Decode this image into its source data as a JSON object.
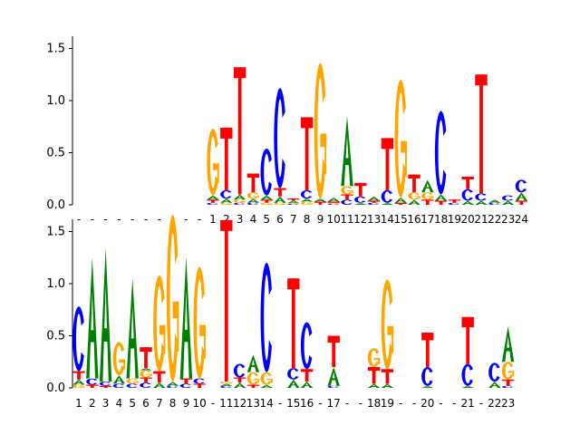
{
  "colors": {
    "A": "#008000",
    "C": "#0000ff",
    "G": "#ffa500",
    "T": "#ff0000",
    "axis": "#000000",
    "background": "#ffffff"
  },
  "chart_data": [
    {
      "type": "sequence-logo",
      "ylim": [
        0,
        1.6
      ],
      "yticks": [
        0.0,
        0.5,
        1.0,
        1.5
      ],
      "ytick_labels": [
        "0.0",
        "0.5",
        "1.0",
        "1.5"
      ],
      "xtick_labels": [
        "-",
        "-",
        "-",
        "-",
        "-",
        "-",
        "-",
        "-",
        "-",
        "-",
        "1",
        "2",
        "3",
        "4",
        "5",
        "6",
        "7",
        "8",
        "9",
        "10",
        "11",
        "12",
        "13",
        "14",
        "15",
        "16",
        "17",
        "18",
        "19",
        "20",
        "21",
        "22",
        "23",
        "24"
      ],
      "positions": [
        [],
        [],
        [],
        [],
        [],
        [],
        [],
        [],
        [],
        [],
        [
          [
            "C",
            0.02
          ],
          [
            "T",
            0.03
          ],
          [
            "A",
            0.04
          ],
          [
            "G",
            0.64
          ]
        ],
        [
          [
            "G",
            0.02
          ],
          [
            "A",
            0.04
          ],
          [
            "C",
            0.08
          ],
          [
            "T",
            0.6
          ]
        ],
        [
          [
            "C",
            0.02
          ],
          [
            "G",
            0.03
          ],
          [
            "A",
            0.05
          ],
          [
            "T",
            1.22
          ]
        ],
        [
          [
            "C",
            0.02
          ],
          [
            "A",
            0.04
          ],
          [
            "G",
            0.06
          ],
          [
            "T",
            0.18
          ]
        ],
        [
          [
            "G",
            0.02
          ],
          [
            "T",
            0.03
          ],
          [
            "A",
            0.04
          ],
          [
            "C",
            0.45
          ]
        ],
        [
          [
            "G",
            0.02
          ],
          [
            "A",
            0.06
          ],
          [
            "T",
            0.08
          ],
          [
            "C",
            0.96
          ]
        ],
        [
          [
            "C",
            0.01
          ],
          [
            "G",
            0.01
          ],
          [
            "A",
            0.02
          ],
          [
            "T",
            0.02
          ]
        ],
        [
          [
            "G",
            0.03
          ],
          [
            "A",
            0.03
          ],
          [
            "C",
            0.08
          ],
          [
            "T",
            0.7
          ]
        ],
        [
          [
            "T",
            0.03
          ],
          [
            "A",
            0.03
          ],
          [
            "G",
            1.3
          ]
        ],
        [
          [
            "C",
            0.01
          ],
          [
            "G",
            0.01
          ],
          [
            "T",
            0.01
          ],
          [
            "A",
            0.04
          ]
        ],
        [
          [
            "C",
            0.05
          ],
          [
            "T",
            0.05
          ],
          [
            "G",
            0.08
          ],
          [
            "A",
            0.67
          ]
        ],
        [
          [
            "A",
            0.02
          ],
          [
            "C",
            0.06
          ],
          [
            "T",
            0.13
          ]
        ],
        [
          [
            "C",
            0.02
          ],
          [
            "T",
            0.02
          ],
          [
            "A",
            0.04
          ]
        ],
        [
          [
            "A",
            0.02
          ],
          [
            "C",
            0.12
          ],
          [
            "T",
            0.5
          ]
        ],
        [
          [
            "T",
            0.02
          ],
          [
            "A",
            0.05
          ],
          [
            "G",
            1.13
          ]
        ],
        [
          [
            "A",
            0.05
          ],
          [
            "G",
            0.07
          ],
          [
            "T",
            0.17
          ]
        ],
        [
          [
            "T",
            0.05
          ],
          [
            "G",
            0.07
          ],
          [
            "A",
            0.12
          ]
        ],
        [
          [
            "T",
            0.04
          ],
          [
            "A",
            0.06
          ],
          [
            "C",
            0.8
          ]
        ],
        [
          [
            "C",
            0.02
          ],
          [
            "T",
            0.03
          ]
        ],
        [
          [
            "A",
            0.04
          ],
          [
            "C",
            0.11
          ],
          [
            "T",
            0.12
          ]
        ],
        [
          [
            "A",
            0.04
          ],
          [
            "C",
            0.07
          ],
          [
            "T",
            1.14
          ]
        ],
        [
          [
            "C",
            0.02
          ],
          [
            "A",
            0.03
          ]
        ],
        [
          [
            "A",
            0.04
          ],
          [
            "C",
            0.05
          ]
        ],
        [
          [
            "T",
            0.04
          ],
          [
            "A",
            0.08
          ],
          [
            "C",
            0.12
          ]
        ]
      ]
    },
    {
      "type": "sequence-logo",
      "ylim": [
        0,
        1.6
      ],
      "yticks": [
        0.0,
        0.5,
        1.0,
        1.5
      ],
      "ytick_labels": [
        "0.0",
        "0.5",
        "1.0",
        "1.5"
      ],
      "xtick_labels": [
        "1",
        "2",
        "3",
        "4",
        "5",
        "6",
        "7",
        "8",
        "9",
        "10",
        "-",
        "11",
        "12",
        "13",
        "14",
        "-",
        "15",
        "16",
        "-",
        "17",
        "-",
        "-",
        "18",
        "19",
        "-",
        "-",
        "20",
        "-",
        "-",
        "21",
        "-",
        "22",
        "23"
      ],
      "positions": [
        [
          [
            "G",
            0.03
          ],
          [
            "A",
            0.05
          ],
          [
            "T",
            0.08
          ],
          [
            "C",
            0.62
          ]
        ],
        [
          [
            "T",
            0.03
          ],
          [
            "C",
            0.06
          ],
          [
            "A",
            1.16
          ]
        ],
        [
          [
            "T",
            0.02
          ],
          [
            "C",
            0.04
          ],
          [
            "A",
            1.28
          ]
        ],
        [
          [
            "C",
            0.04
          ],
          [
            "A",
            0.08
          ],
          [
            "G",
            0.32
          ]
        ],
        [
          [
            "C",
            0.04
          ],
          [
            "G",
            0.05
          ],
          [
            "A",
            0.96
          ]
        ],
        [
          [
            "C",
            0.05
          ],
          [
            "T",
            0.05
          ],
          [
            "G",
            0.07
          ],
          [
            "A",
            0.02
          ],
          [
            "T",
            0.2
          ]
        ],
        [
          [
            "A",
            0.05
          ],
          [
            "T",
            0.11
          ],
          [
            "G",
            0.92
          ]
        ],
        [
          [
            "C",
            0.02
          ],
          [
            "A",
            0.04
          ],
          [
            "G",
            1.6
          ]
        ],
        [
          [
            "C",
            0.04
          ],
          [
            "T",
            0.05
          ],
          [
            "A",
            1.17
          ]
        ],
        [
          [
            "T",
            0.04
          ],
          [
            "C",
            0.05
          ],
          [
            "G",
            1.07
          ]
        ],
        [],
        [
          [
            "C",
            0.02
          ],
          [
            "A",
            0.02
          ],
          [
            "G",
            0.02
          ],
          [
            "T",
            1.55
          ]
        ],
        [
          [
            "A",
            0.05
          ],
          [
            "T",
            0.05
          ],
          [
            "C",
            0.13
          ]
        ],
        [
          [
            "T",
            0.03
          ],
          [
            "G",
            0.12
          ],
          [
            "A",
            0.17
          ]
        ],
        [
          [
            "A",
            0.03
          ],
          [
            "G",
            0.12
          ],
          [
            "C",
            1.05
          ]
        ],
        [],
        [
          [
            "A",
            0.08
          ],
          [
            "C",
            0.11
          ],
          [
            "T",
            0.86
          ]
        ],
        [
          [
            "A",
            0.06
          ],
          [
            "T",
            0.12
          ],
          [
            "C",
            0.45
          ]
        ],
        [],
        [
          [
            "C",
            0.02
          ],
          [
            "A",
            0.18
          ],
          [
            "T",
            0.3
          ]
        ],
        [],
        [],
        [
          [
            "A",
            0.04
          ],
          [
            "T",
            0.16
          ],
          [
            "G",
            0.18
          ]
        ],
        [
          [
            "A",
            0.04
          ],
          [
            "T",
            0.14
          ],
          [
            "G",
            0.86
          ]
        ],
        [],
        [],
        [
          [
            "A",
            0.02
          ],
          [
            "C",
            0.18
          ],
          [
            "T",
            0.33
          ]
        ],
        [],
        [],
        [
          [
            "A",
            0.02
          ],
          [
            "C",
            0.21
          ],
          [
            "T",
            0.45
          ]
        ],
        [],
        [
          [
            "A",
            0.06
          ],
          [
            "C",
            0.18
          ]
        ],
        [
          [
            "C",
            0.02
          ],
          [
            "T",
            0.06
          ],
          [
            "G",
            0.17
          ],
          [
            "A",
            0.34
          ]
        ]
      ]
    }
  ]
}
